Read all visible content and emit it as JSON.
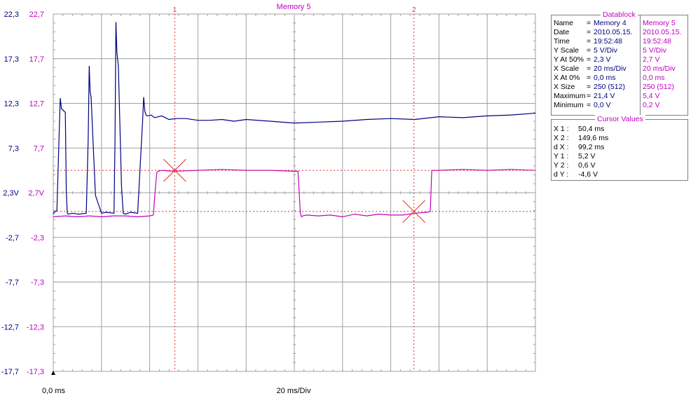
{
  "chart_data": {
    "type": "line",
    "title": "Memory 5",
    "x_axis": {
      "start_label": "0,0 ms",
      "scale_label": "20 ms/Div",
      "xlim_ms": [
        0,
        200
      ],
      "divisions": 10
    },
    "y_axes": [
      {
        "side": "left-outer",
        "color": "#000080",
        "ticks": [
          "22,3",
          "17,3",
          "12,3",
          "7,3",
          "2,3V",
          "-2,7",
          "-7,7",
          "-12,7",
          "-17,7"
        ],
        "ylim_V": [
          -17.7,
          22.3
        ]
      },
      {
        "side": "left-inner",
        "color": "#c000c0",
        "ticks": [
          "22,7",
          "17,7",
          "12,7",
          "7,7",
          "2,7V",
          "-2,3",
          "-7,3",
          "-12,3",
          "-17,3"
        ],
        "ylim_V": [
          -17.3,
          22.7
        ]
      }
    ],
    "grid": true,
    "series": [
      {
        "name": "Memory 4",
        "color": "#000080",
        "x": [
          0,
          0.4,
          1.5,
          2.5,
          2.9,
          3.4,
          5,
          5.4,
          5.8,
          6.2,
          8,
          10.5,
          13.7,
          14.5,
          14.9,
          15.3,
          15.7,
          17.5,
          20,
          22,
          25.2,
          25.6,
          26,
          26.4,
          27,
          28.3,
          29,
          30,
          32,
          35,
          37.1,
          37.5,
          38,
          38.5,
          39,
          40.5,
          42,
          45,
          48,
          51,
          55,
          60,
          65,
          70,
          75,
          80,
          90,
          100,
          110,
          120,
          130,
          140,
          150,
          160,
          170,
          180,
          190,
          200
        ],
        "y": [
          -0.1,
          0.1,
          0.3,
          9.4,
          12.9,
          11.7,
          11.3,
          2.5,
          0.0,
          -0.1,
          0.0,
          -0.1,
          0.0,
          8.5,
          16.5,
          13.6,
          13.0,
          2.0,
          0.0,
          0.1,
          0.0,
          8.0,
          21.4,
          18.0,
          16.5,
          3.0,
          0.0,
          -0.1,
          0.1,
          0.0,
          10.5,
          13.0,
          11.4,
          11.0,
          10.9,
          11.0,
          10.7,
          10.9,
          10.5,
          10.6,
          10.6,
          10.4,
          10.4,
          10.5,
          10.3,
          10.5,
          10.3,
          10.1,
          10.2,
          10.3,
          10.5,
          10.6,
          10.5,
          10.8,
          10.7,
          10.9,
          11.0,
          11.2
        ]
      },
      {
        "name": "Memory 5",
        "color": "#c000c0",
        "x": [
          0,
          5,
          10,
          15,
          20,
          25,
          30,
          35,
          40,
          41.5,
          42.5,
          43,
          43.5,
          45,
          50,
          60,
          70,
          80,
          90,
          100,
          101.5,
          102.5,
          103,
          103.5,
          105,
          110,
          115,
          120,
          125,
          130,
          135,
          140,
          145,
          150,
          155,
          156.4,
          157,
          158,
          160,
          170,
          180,
          190,
          200
        ],
        "y": [
          0.0,
          0.1,
          0.0,
          0.1,
          0.0,
          0.1,
          0.1,
          0.0,
          0.1,
          0.2,
          3.7,
          5.0,
          5.1,
          5.2,
          5.1,
          5.2,
          5.3,
          5.2,
          5.2,
          5.1,
          5.1,
          0.4,
          0.0,
          0.1,
          0.2,
          0.1,
          0.2,
          0.0,
          0.3,
          0.1,
          0.3,
          0.2,
          0.2,
          0.4,
          0.5,
          0.6,
          5.2,
          5.2,
          5.2,
          5.3,
          5.2,
          5.3,
          5.2
        ]
      }
    ],
    "cursors": [
      {
        "label": "1",
        "x_ms": 50.4,
        "y_V": 5.2
      },
      {
        "label": "2",
        "x_ms": 149.6,
        "y_V": 0.6
      }
    ]
  },
  "datablock": {
    "title": "Datablock",
    "rows": [
      {
        "label": "Name",
        "eq": "=",
        "v1": "Memory 4",
        "v2": "Memory 5"
      },
      {
        "label": "Date",
        "eq": "=",
        "v1": "2010.05.15.",
        "v2": "2010.05.15."
      },
      {
        "label": "Time",
        "eq": "=",
        "v1": "19:52:48",
        "v2": "19:52:48"
      },
      {
        "label": "Y Scale",
        "eq": "=",
        "v1": "5   V/Div",
        "v2": "5   V/Div"
      },
      {
        "label": "Y At 50%",
        "eq": "=",
        "v1": "2,3 V",
        "v2": "2,7 V"
      },
      {
        "label": "X Scale",
        "eq": "=",
        "v1": "20   ms/Div",
        "v2": "20   ms/Div"
      },
      {
        "label": "X At 0%",
        "eq": "=",
        "v1": "0,0 ms",
        "v2": "0,0 ms"
      },
      {
        "label": "X Size",
        "eq": "=",
        "v1": "250 (512)",
        "v2": "250 (512)"
      },
      {
        "label": "Maximum",
        "eq": "=",
        "v1": "21,4 V",
        "v2": "5,4 V"
      },
      {
        "label": "Minimum",
        "eq": "=",
        "v1": "0,0 V",
        "v2": "0,2 V"
      }
    ]
  },
  "cursor_values": {
    "title": "Cursor Values",
    "rows": [
      {
        "label": "X 1 :",
        "value": "50,4 ms"
      },
      {
        "label": "X 2 :",
        "value": "149,6 ms"
      },
      {
        "label": "d X :",
        "value": "99,2 ms"
      },
      {
        "label": "Y 1 :",
        "value": "5,2 V"
      },
      {
        "label": "Y 2 :",
        "value": "0,6 V"
      },
      {
        "label": "d Y :",
        "value": "-4,6 V"
      }
    ]
  },
  "colors": {
    "grid": "#a0a0a0",
    "cursor": "#e03030",
    "series1": "#000080",
    "series2": "#c000c0",
    "title": "#c000c0"
  }
}
